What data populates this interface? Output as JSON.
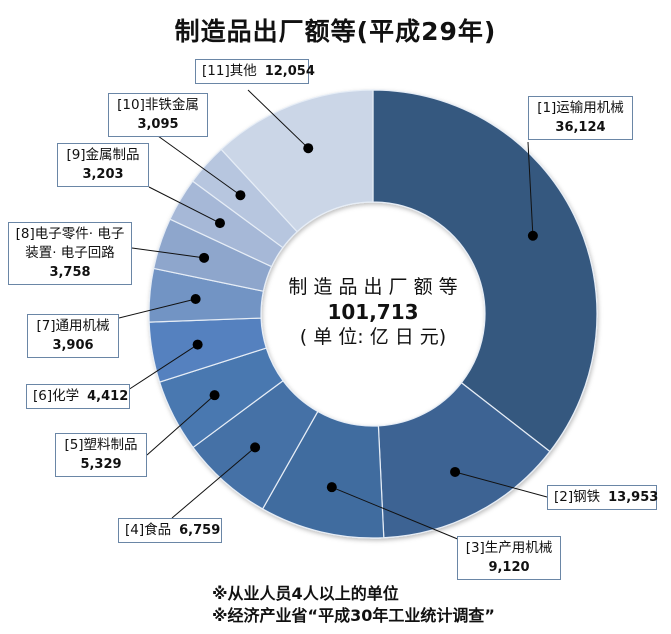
{
  "title": "制造品出厂额等(平成29年)",
  "center": {
    "line1": "制 造 品 出 厂 额 等",
    "total": "101,713",
    "unit": "( 单 位: 亿 日 元)"
  },
  "notes": [
    "※从业人员4人以上的单位",
    "※经济产业省“平成30年工业统计调查”"
  ],
  "chart_data": {
    "type": "pie",
    "subtype": "donut",
    "title": "制造品出厂额等(平成29年)",
    "total": 101713,
    "unit": "亿日元",
    "categories": [
      "[1]运输用机械",
      "[2]钢铁",
      "[3]生产用机械",
      "[4]食品",
      "[5]塑料制品",
      "[6]化学",
      "[7]通用机械",
      "[8]电子零件· 电子装置· 电子回路",
      "[9]金属制品",
      "[10]非铁金属",
      "[11]其他"
    ],
    "values": [
      36124,
      13953,
      9120,
      6759,
      5329,
      4412,
      3906,
      3758,
      3203,
      3095,
      12054
    ],
    "colors": [
      "#36587f",
      "#3d6393",
      "#416c9f",
      "#4471a6",
      "#4a78b0",
      "#5481bf",
      "#7294c4",
      "#8ea6cc",
      "#a6b8d7",
      "#b7c6df",
      "#cbd6e7"
    ],
    "start_angle_deg": 0,
    "direction": "clockwise",
    "legend": "callout-labels"
  },
  "labels": [
    {
      "name": "[1]运输用机械",
      "value": "36,124"
    },
    {
      "name": "[2]钢铁",
      "value": "13,953"
    },
    {
      "name": "[3]生产用机械",
      "value": "9,120"
    },
    {
      "name": "[4]食品",
      "value": "6,759"
    },
    {
      "name": "[5]塑料制品",
      "value": "5,329"
    },
    {
      "name": "[6]化学",
      "value": "4,412"
    },
    {
      "name": "[7]通用机械",
      "value": "3,906"
    },
    {
      "name": "[8]电子零件· 电子",
      "name2": "装置· 电子回路",
      "value": "3,758"
    },
    {
      "name": "[9]金属制品",
      "value": "3,203"
    },
    {
      "name": "[10]非铁金属",
      "value": "3,095"
    },
    {
      "name": "[11]其他",
      "value": "12,054"
    }
  ]
}
